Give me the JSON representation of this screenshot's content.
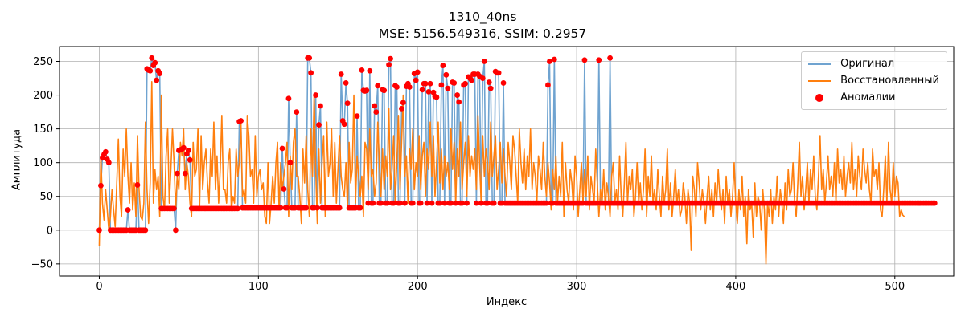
{
  "figure": {
    "title": "1310_40ns",
    "subtitle": "MSE: 5156.549316, SSIM: 0.2957",
    "xlabel": "Индекс",
    "ylabel": "Амплитуда"
  },
  "legend": {
    "items": [
      {
        "label": "Оригинал",
        "kind": "line",
        "color": "#6fa3d0"
      },
      {
        "label": "Восстановленный",
        "kind": "line",
        "color": "#ff7f0e"
      },
      {
        "label": "Аномалии",
        "kind": "dot",
        "color": "#ff0000"
      }
    ]
  },
  "chart_data": {
    "type": "line",
    "title": "1310_40ns",
    "subtitle": "MSE: 5156.549316, SSIM: 0.2957",
    "xlabel": "Индекс",
    "ylabel": "Амплитуда",
    "xlim": [
      -25,
      537
    ],
    "ylim": [
      -68,
      272
    ],
    "xticks": [
      0,
      100,
      200,
      300,
      400,
      500
    ],
    "yticks": [
      -50,
      0,
      50,
      100,
      150,
      200,
      250
    ],
    "grid": true,
    "legend_position": "top-right",
    "x": "index 0..511",
    "series": [
      {
        "name": "Оригинал",
        "kind": "line",
        "color": "#6fa3d0",
        "values": [
          0,
          66,
          107,
          112,
          116,
          105,
          100,
          0,
          0,
          0,
          0,
          0,
          0,
          0,
          0,
          0,
          0,
          0,
          30,
          0,
          0,
          0,
          0,
          0,
          67,
          0,
          0,
          0,
          0,
          0,
          239,
          237,
          236,
          255,
          244,
          248,
          222,
          236,
          232,
          32,
          32,
          32,
          32,
          32,
          32,
          32,
          32,
          32,
          0,
          84,
          118,
          119,
          120,
          122,
          84,
          113,
          118,
          104,
          32,
          32,
          32,
          32,
          32,
          32,
          32,
          32,
          32,
          32,
          32,
          32,
          32,
          32,
          32,
          32,
          32,
          32,
          32,
          32,
          32,
          32,
          32,
          32,
          32,
          32,
          32,
          32,
          32,
          32,
          161,
          162,
          33,
          33,
          33,
          33,
          33,
          33,
          33,
          33,
          33,
          33,
          33,
          33,
          33,
          33,
          33,
          33,
          33,
          33,
          33,
          33,
          33,
          33,
          33,
          33,
          33,
          121,
          61,
          33,
          33,
          195,
          100,
          33,
          33,
          33,
          175,
          33,
          33,
          33,
          33,
          33,
          33,
          255,
          255,
          233,
          33,
          33,
          200,
          33,
          156,
          184,
          33,
          33,
          33,
          33,
          33,
          33,
          33,
          33,
          33,
          33,
          33,
          33,
          231,
          162,
          157,
          218,
          188,
          33,
          33,
          33,
          33,
          33,
          169,
          33,
          33,
          237,
          207,
          206,
          207,
          40,
          236,
          40,
          40,
          184,
          175,
          214,
          40,
          40,
          208,
          207,
          40,
          40,
          245,
          254,
          40,
          40,
          214,
          212,
          40,
          40,
          180,
          189,
          40,
          213,
          217,
          212,
          40,
          40,
          232,
          222,
          234,
          40,
          40,
          208,
          217,
          217,
          40,
          205,
          217,
          40,
          204,
          198,
          197,
          40,
          40,
          215,
          244,
          40,
          230,
          210,
          40,
          40,
          219,
          218,
          40,
          200,
          190,
          40,
          40,
          215,
          217,
          40,
          227,
          225,
          222,
          231,
          231,
          40,
          231,
          228,
          40,
          225,
          250,
          40,
          40,
          219,
          210,
          40,
          40,
          235,
          233,
          233,
          40,
          40,
          218,
          40,
          40,
          40,
          40,
          40,
          40,
          40,
          40,
          40,
          40,
          40,
          40,
          40,
          40,
          40,
          40,
          40,
          40,
          40,
          40,
          40,
          40,
          40,
          40,
          40,
          40,
          40,
          215,
          250,
          40,
          40,
          253,
          40,
          40,
          40,
          40,
          40,
          40,
          40,
          40,
          40,
          40,
          40,
          40,
          40,
          40,
          40,
          40,
          40,
          40,
          252,
          40,
          40,
          40,
          40,
          40,
          40,
          40,
          40,
          252,
          40,
          40,
          40,
          40,
          40,
          40,
          255,
          40,
          40,
          40,
          40,
          40,
          40,
          40,
          40,
          40,
          40,
          40,
          40,
          40,
          40,
          40,
          40,
          40,
          40,
          40,
          40,
          40,
          40,
          40,
          40,
          40,
          40,
          40,
          40,
          40,
          40,
          40,
          40,
          40,
          40,
          40,
          40,
          40,
          40,
          40,
          40,
          40,
          40,
          40,
          40,
          40,
          40,
          40,
          40,
          40,
          40,
          40,
          40,
          40,
          40,
          40,
          40,
          40,
          40,
          40,
          40,
          40,
          40,
          40,
          40,
          40,
          40,
          40,
          40,
          40,
          40,
          40,
          40,
          40,
          40,
          40,
          40,
          40,
          40,
          40,
          40,
          40,
          40,
          40,
          40,
          40,
          40,
          40,
          40,
          40,
          40,
          40,
          40,
          40,
          40,
          40,
          40,
          40,
          40,
          40,
          40,
          40,
          40,
          40,
          40,
          40,
          40,
          40,
          40,
          40,
          40,
          40,
          40,
          40,
          40,
          40,
          40,
          40,
          40,
          40,
          40,
          40,
          40,
          40,
          40,
          40,
          40,
          40,
          40,
          40,
          40,
          40,
          40,
          40,
          40,
          40,
          40,
          40,
          40,
          40,
          40,
          40,
          40,
          40,
          40,
          40,
          40,
          40,
          40,
          40,
          40,
          40,
          40,
          40,
          40,
          40,
          40,
          40,
          40,
          40,
          40,
          40,
          40,
          40,
          40,
          40,
          40,
          40,
          40,
          40,
          40,
          40,
          40,
          40,
          40,
          40,
          40,
          40,
          40,
          40,
          40,
          40,
          40,
          40,
          40,
          40,
          40,
          40,
          40,
          40,
          40,
          40,
          40,
          40,
          40,
          40,
          40,
          40,
          40,
          40,
          40,
          40,
          40,
          40,
          40
        ]
      },
      {
        "name": "Восстановленный",
        "kind": "line",
        "color": "#ff7f0e",
        "values": [
          -23,
          110,
          40,
          15,
          60,
          30,
          0,
          20,
          60,
          30,
          5,
          70,
          135,
          50,
          20,
          120,
          80,
          150,
          80,
          40,
          100,
          30,
          70,
          20,
          140,
          60,
          20,
          15,
          40,
          160,
          60,
          10,
          70,
          220,
          40,
          90,
          60,
          80,
          20,
          200,
          50,
          30,
          110,
          150,
          40,
          90,
          150,
          100,
          30,
          80,
          60,
          130,
          110,
          150,
          60,
          100,
          80,
          40,
          20,
          130,
          80,
          90,
          150,
          30,
          140,
          60,
          100,
          120,
          70,
          40,
          120,
          80,
          160,
          60,
          110,
          40,
          90,
          170,
          60,
          60,
          40,
          100,
          120,
          30,
          50,
          40,
          120,
          80,
          100,
          160,
          50,
          60,
          40,
          170,
          140,
          80,
          90,
          40,
          140,
          50,
          80,
          90,
          60,
          70,
          20,
          10,
          100,
          10,
          40,
          80,
          40,
          100,
          130,
          30,
          100,
          60,
          80,
          100,
          130,
          20,
          110,
          60,
          130,
          150,
          80,
          80,
          50,
          10,
          120,
          70,
          140,
          60,
          20,
          150,
          80,
          200,
          90,
          10,
          120,
          40,
          100,
          140,
          20,
          160,
          80,
          100,
          150,
          50,
          130,
          40,
          90,
          140,
          80,
          60,
          50,
          100,
          30,
          130,
          70,
          90,
          200,
          40,
          110,
          80,
          50,
          80,
          20,
          130,
          120,
          60,
          150,
          80,
          90,
          50,
          70,
          160,
          100,
          50,
          120,
          60,
          110,
          80,
          180,
          60,
          90,
          140,
          40,
          100,
          170,
          60,
          130,
          200,
          80,
          110,
          40,
          120,
          90,
          150,
          60,
          100,
          80,
          140,
          60,
          110,
          130,
          50,
          120,
          90,
          160,
          80,
          140,
          50,
          100,
          160,
          70,
          120,
          60,
          110,
          80,
          100,
          60,
          150,
          90,
          130,
          40,
          120,
          80,
          160,
          60,
          100,
          130,
          50,
          140,
          80,
          110,
          90,
          120,
          60,
          170,
          100,
          40,
          140,
          80,
          120,
          100,
          60,
          160,
          80,
          110,
          140,
          60,
          90,
          130,
          70,
          120,
          80,
          50,
          130,
          100,
          60,
          140,
          120,
          80,
          40,
          150,
          100,
          70,
          120,
          60,
          110,
          80,
          150,
          60,
          100,
          80,
          40,
          110,
          90,
          60,
          130,
          80,
          50,
          100,
          70,
          30,
          90,
          60,
          110,
          40,
          80,
          50,
          130,
          20,
          100,
          60,
          40,
          90,
          70,
          30,
          110,
          80,
          20,
          60,
          100,
          40,
          90,
          50,
          110,
          30,
          80,
          60,
          40,
          120,
          70,
          20,
          60,
          40,
          90,
          30,
          70,
          50,
          20,
          80,
          100,
          40,
          60,
          30,
          110,
          50,
          20,
          70,
          130,
          40,
          80,
          60,
          90,
          20,
          50,
          100,
          40,
          70,
          30,
          60,
          120,
          20,
          80,
          50,
          110,
          40,
          60,
          30,
          90,
          50,
          20,
          80,
          40,
          60,
          120,
          30,
          70,
          20,
          50,
          90,
          40,
          60,
          20,
          30,
          70,
          50,
          10,
          60,
          40,
          -30,
          80,
          60,
          20,
          100,
          70,
          30,
          60,
          40,
          10,
          50,
          80,
          30,
          60,
          20,
          70,
          40,
          90,
          50,
          30,
          60,
          10,
          80,
          40,
          60,
          20,
          50,
          100,
          40,
          10,
          60,
          30,
          80,
          20,
          50,
          -20,
          60,
          30,
          40,
          -10,
          70,
          20,
          50,
          40,
          0,
          60,
          30,
          -50,
          40,
          20,
          60,
          10,
          50,
          30,
          80,
          20,
          60,
          40,
          10,
          70,
          30,
          90,
          50,
          60,
          100,
          40,
          20,
          70,
          130,
          50,
          80,
          30,
          60,
          100,
          40,
          90,
          60,
          110,
          50,
          30,
          80,
          140,
          60,
          90,
          40,
          70,
          110,
          60,
          80,
          50,
          100,
          40,
          120,
          70,
          90,
          60,
          110,
          50,
          80,
          100,
          70,
          130,
          60,
          90,
          50,
          110,
          80,
          60,
          120,
          90,
          70,
          100,
          60,
          40,
          120,
          80,
          90,
          60,
          100,
          30,
          20,
          60,
          110,
          40,
          130,
          60,
          40,
          100,
          50,
          80,
          70,
          20,
          30,
          22,
          20
        ]
      },
      {
        "name": "Аномалии",
        "kind": "scatter",
        "color": "#ff0000",
        "points": "all 512 indices of Оригинал, drawn at the Оригинал values"
      }
    ]
  }
}
